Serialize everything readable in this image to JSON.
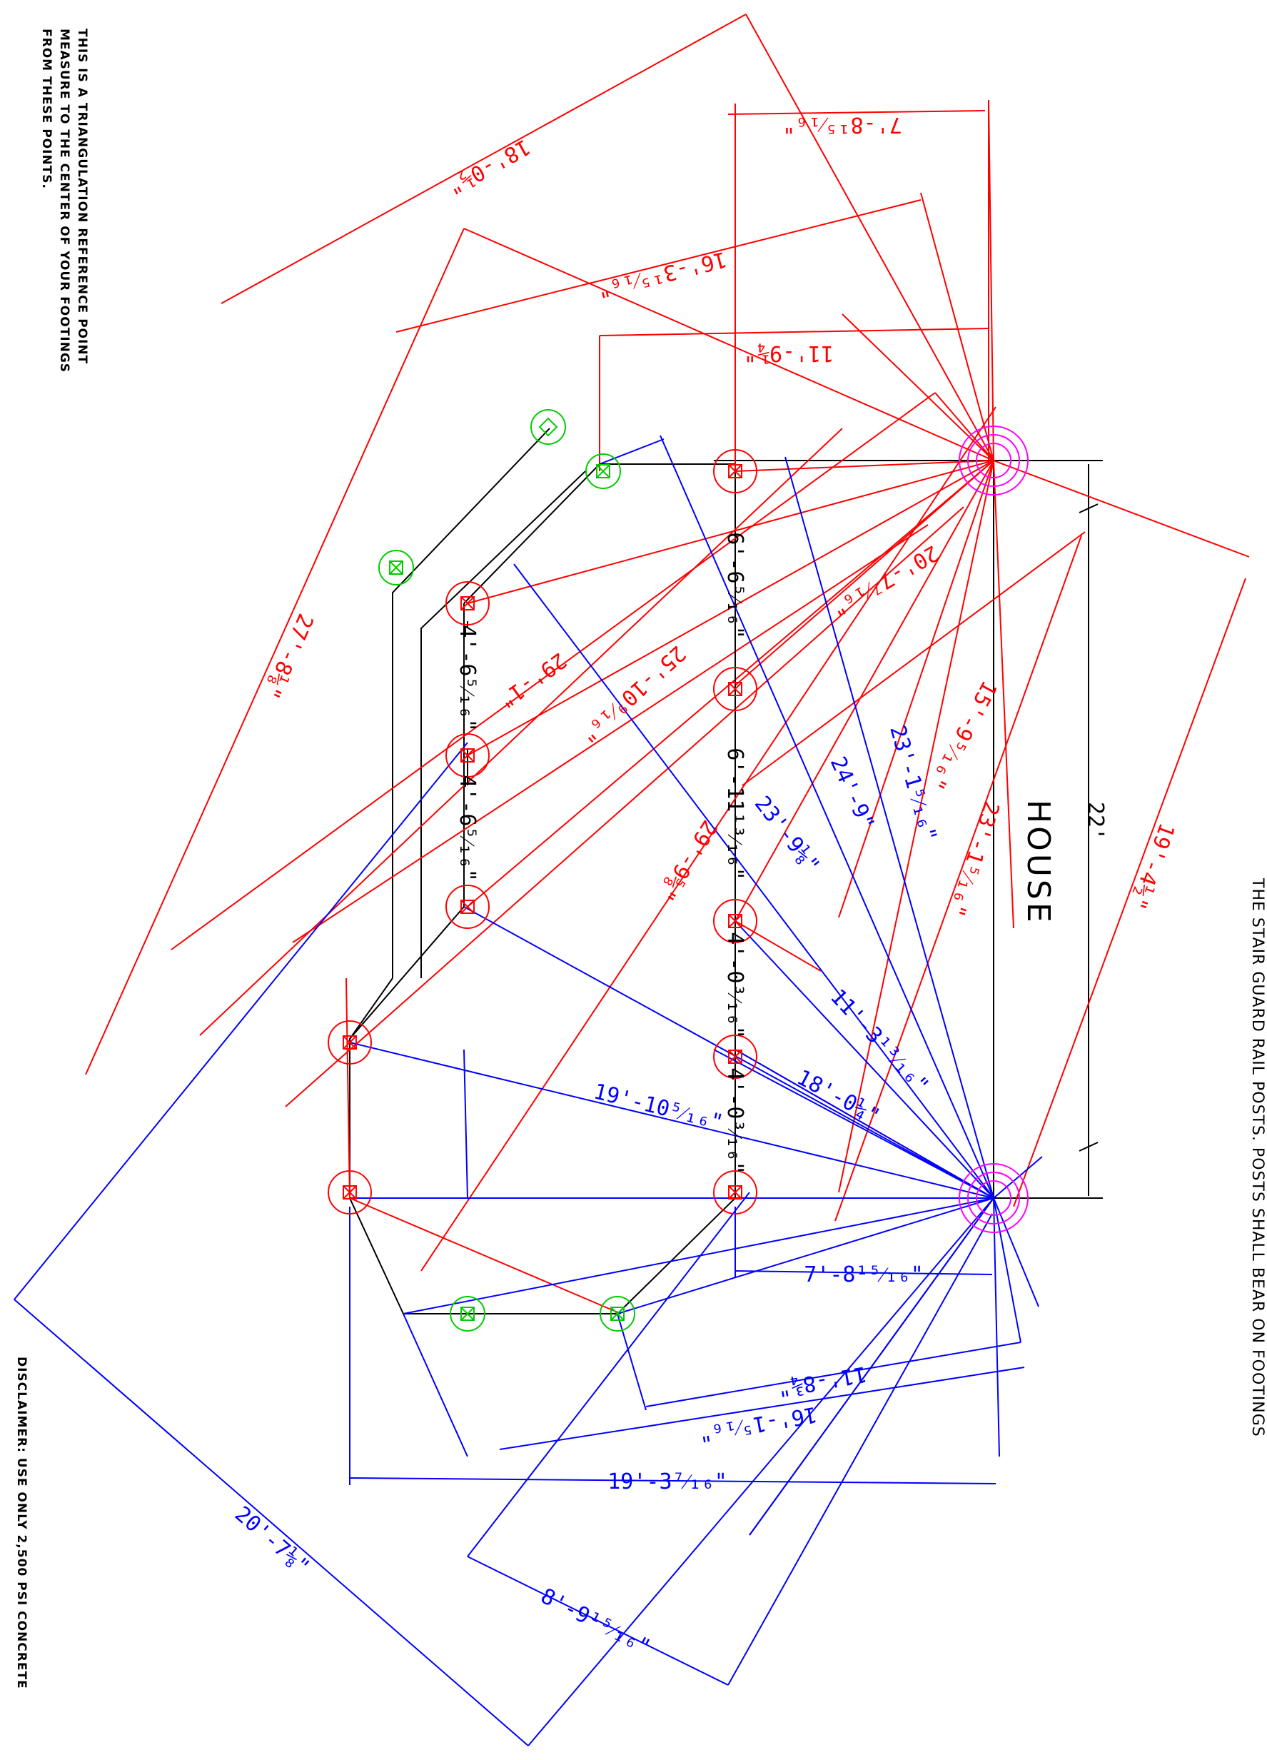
{
  "notes": {
    "line1": "THIS IS A TRIANGULATION REFERENCE POINT",
    "line2": "MEASURE TO THE CENTER OF YOUR FOOTINGS",
    "line3": "FROM THESE POINTS.",
    "disclaimer": "DISCLAIMER:  USE ONLY 2,500 PSI CONCRETE",
    "stair_note": "THE STAIR GUARD RAIL POSTS.  POSTS SHALL BEAR ON FOOTINGS"
  },
  "house_label": "HOUSE",
  "house_width": "22'",
  "red_dims": [
    "18'-0½\"",
    "7'-8¹⁵⁄₁₆\"",
    "16'-3¹⁵⁄₁₆\"",
    "11'-9¼\"",
    "27'-8⅛\"",
    "29'-1\"",
    "25'-10⁹⁄₁₆\"",
    "20'-7⁷⁄₁₆\"",
    "15'-9⁵⁄₁₆\"",
    "29'-9⅝\"",
    "23'-1⁵⁄₁₆\"",
    "19'-4½\""
  ],
  "blue_dims": [
    "24'-9\"",
    "23'-1⁵⁄₁₆\"",
    "23'-9⅛\"",
    "11'-3¹³⁄₁₆\"",
    "18'-0¼\"",
    "19'-10⁵⁄₁₆\"",
    "7'-8¹⁵⁄₁₆\"",
    "11'-8¾\"",
    "16'-1⁵⁄₁₆\"",
    "19'-3⁷⁄₁₆\"",
    "20'-7⅛\"",
    "8'-9¹⁵⁄₁₆\""
  ],
  "black_dims": [
    "6'-6⁵⁄₁₆\"",
    "6'-11¹³⁄₁₆\"",
    "4'-0³⁄₁₆\"",
    "4'-0³⁄₁₆\"",
    "4'-6⁵⁄₁₆\"",
    "4'-6⁵⁄₁₆\""
  ],
  "colors": {
    "reference_points": "#ff00ff",
    "footing": "#ff0000",
    "post": "#00cc00",
    "red_dimensions": "#ff0000",
    "blue_dimensions": "#0000ff",
    "outline": "#000000"
  }
}
